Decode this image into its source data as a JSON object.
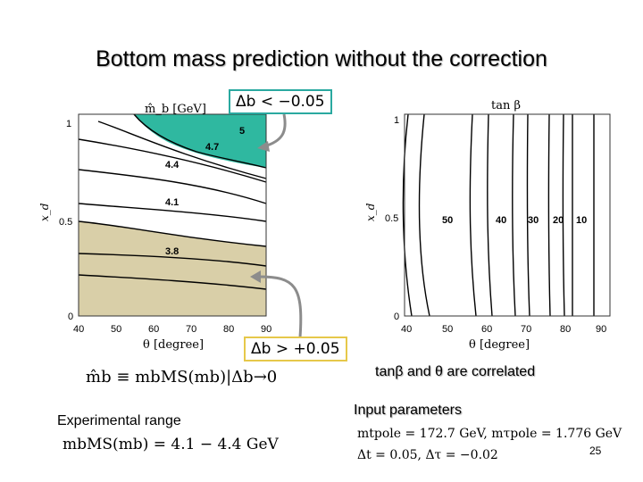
{
  "slide": {
    "title": "Bottom mass prediction without the correction",
    "page_number": "25"
  },
  "left_plot": {
    "axis_title": "m̂_b [GeV]",
    "y_axis_label": "x_d",
    "x_axis_label": "θ [degree]",
    "x_ticks": [
      "40",
      "50",
      "60",
      "70",
      "80",
      "90"
    ],
    "y_ticks": [
      "0",
      "0.5",
      "1"
    ],
    "contour_labels": [
      "5",
      "4.7",
      "4.4",
      "4.1",
      "3.8"
    ],
    "teal_color": "#2fb8a0",
    "tan_color": "#d9cfa8"
  },
  "right_plot": {
    "axis_title": "tan β",
    "y_axis_label": "x_d",
    "x_axis_label": "θ [degree]",
    "x_ticks": [
      "40",
      "50",
      "60",
      "70",
      "80",
      "90"
    ],
    "y_ticks": [
      "0",
      "0.5",
      "1"
    ],
    "contour_labels": [
      "50",
      "40",
      "30",
      "20",
      "10"
    ]
  },
  "callouts": {
    "negative_box": "Δb < −0.05",
    "negative_box_color": "#2aa9a0",
    "positive_box": "Δb > +0.05",
    "positive_box_color": "#e6c84a"
  },
  "text": {
    "correlation_note": "tanβ and θ are correlated",
    "mass_definition": "m̂b ≡ mbMS(mb)|Δb→0",
    "experimental_label": "Experimental range",
    "experimental_value": "mbMS(mb) = 4.1 − 4.4 GeV",
    "input_label": "Input parameters",
    "input_line1": "mtpole = 172.7 GeV,  mτpole = 1.776 GeV",
    "input_line2": "Δt = 0.05,  Δτ = −0.02"
  }
}
